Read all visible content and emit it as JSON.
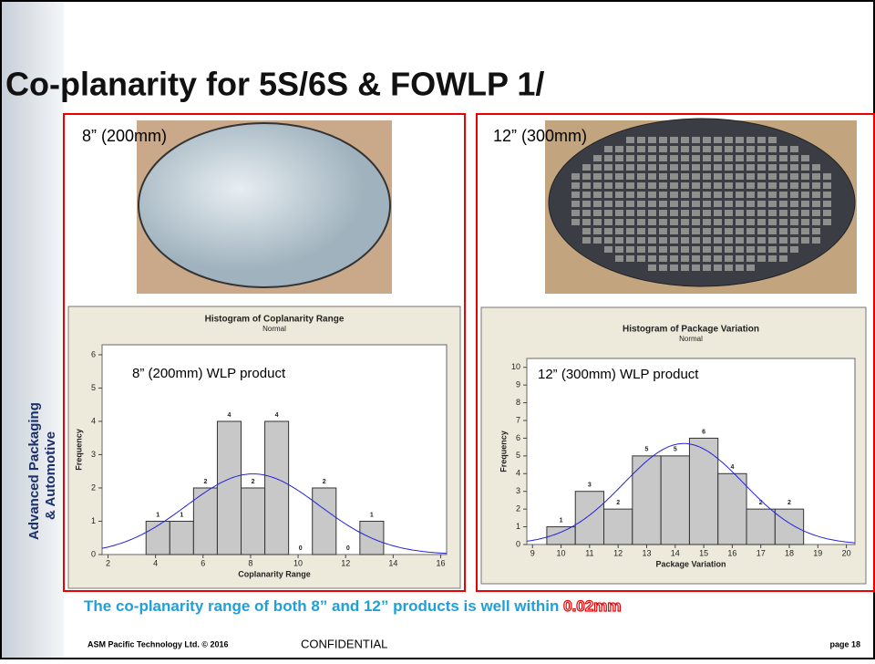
{
  "slide": {
    "title": "Co-planarity for 5S/6S & FOWLP 1/",
    "sidebar": [
      "Advanced Packaging",
      "& Automotive"
    ],
    "panels": [
      {
        "label": "8” (200mm)"
      },
      {
        "label": "12” (300mm)"
      }
    ],
    "statement": "The co-planarity range of both 8” and 12” products is well within ",
    "highlight": "0.02mm",
    "footer": {
      "company": "ASM Pacific Technology Ltd. © 2016",
      "confidential": "CONFIDENTIAL",
      "page": "page 18"
    }
  },
  "chart_data": [
    {
      "type": "histogram",
      "title": "Histogram of Coplanarity Range",
      "subtitle": "Normal",
      "annotation": "8” (200mm) WLP product",
      "x_label": "Coplanarity Range",
      "y_label": "Frequency",
      "bins": [
        3.6,
        4.6,
        5.6,
        6.6,
        7.6,
        8.6,
        9.6,
        10.6,
        11.6,
        12.6,
        13.6
      ],
      "values": [
        1,
        1,
        2,
        4,
        2,
        4,
        0,
        2,
        0,
        1
      ],
      "color": "#c8c8c8",
      "curve_color": "#2222dd",
      "normal_fit": {
        "mean": 8.1,
        "sd": 2.8
      },
      "xlim": [
        1.75,
        16.25
      ],
      "xticks": [
        2,
        4,
        6,
        8,
        10,
        12,
        14,
        16
      ],
      "ylim": [
        0,
        6.3
      ],
      "yticks": [
        0,
        1,
        2,
        3,
        4,
        5,
        6
      ]
    },
    {
      "type": "histogram",
      "title": "Histogram of Package Variation",
      "subtitle": "Normal",
      "annotation": "12” (300mm) WLP product",
      "x_label": "Package Variation",
      "y_label": "Frequency",
      "bins": [
        9.5,
        10.5,
        11.5,
        12.5,
        13.5,
        14.5,
        15.5,
        16.5,
        17.5,
        18.5
      ],
      "values": [
        1,
        3,
        2,
        5,
        5,
        6,
        4,
        2,
        2
      ],
      "color": "#c8c8c8",
      "curve_color": "#2222dd",
      "normal_fit": {
        "mean": 14.3,
        "sd": 2.1
      },
      "xlim": [
        8.8,
        20.3
      ],
      "xticks": [
        9,
        10,
        11,
        12,
        13,
        14,
        15,
        16,
        17,
        18,
        19,
        20
      ],
      "ylim": [
        0,
        10.5
      ],
      "yticks": [
        0,
        1,
        2,
        3,
        4,
        5,
        6,
        7,
        8,
        9,
        10
      ]
    }
  ]
}
